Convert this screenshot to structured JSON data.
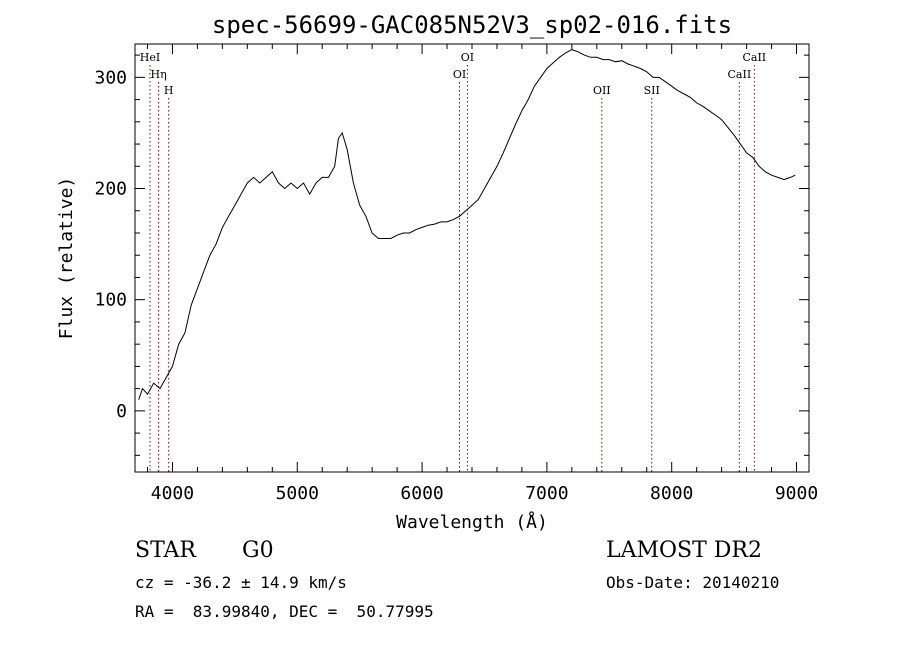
{
  "chart_data": {
    "type": "line",
    "title": "spec-56699-GAC085N52V3_sp02-016.fits",
    "xlabel": "Wavelength (Å)",
    "ylabel": "Flux (relative)",
    "xlim": [
      3700,
      9100
    ],
    "ylim": [
      -55,
      330
    ],
    "xticks": [
      4000,
      5000,
      6000,
      7000,
      8000,
      9000
    ],
    "yticks": [
      0,
      100,
      200,
      300
    ],
    "xtick_labels": [
      "4000",
      "5000",
      "6000",
      "7000",
      "8000",
      "9000"
    ],
    "ytick_labels": [
      "0",
      "100",
      "200",
      "300"
    ],
    "x_minor_step": 200,
    "y_minor_step": 20,
    "grid": false,
    "line_color": "#000000",
    "marker_color": "#8b0000",
    "series": [
      {
        "x": [
          3730,
          3760,
          3800,
          3850,
          3900,
          3950,
          4000,
          4050,
          4100,
          4150,
          4200,
          4250,
          4300,
          4350,
          4400,
          4450,
          4500,
          4550,
          4600,
          4650,
          4700,
          4750,
          4800,
          4850,
          4900,
          4950,
          5000,
          5050,
          5100,
          5150,
          5200,
          5250,
          5300,
          5330,
          5360,
          5400,
          5450,
          5500,
          5550,
          5600,
          5650,
          5700,
          5750,
          5800,
          5850,
          5900,
          5950,
          6000,
          6050,
          6100,
          6150,
          6200,
          6250,
          6300,
          6350,
          6400,
          6450,
          6500,
          6550,
          6600,
          6650,
          6700,
          6750,
          6800,
          6850,
          6900,
          6950,
          7000,
          7050,
          7100,
          7150,
          7200,
          7250,
          7300,
          7350,
          7400,
          7450,
          7500,
          7550,
          7600,
          7650,
          7700,
          7750,
          7800,
          7850,
          7900,
          7950,
          8000,
          8050,
          8100,
          8150,
          8200,
          8250,
          8300,
          8350,
          8400,
          8450,
          8500,
          8550,
          8600,
          8650,
          8700,
          8750,
          8800,
          8850,
          8900,
          8950,
          8990
        ],
        "y": [
          10,
          20,
          15,
          25,
          20,
          30,
          40,
          60,
          70,
          95,
          110,
          125,
          140,
          150,
          165,
          175,
          185,
          195,
          205,
          210,
          205,
          210,
          215,
          205,
          200,
          205,
          200,
          205,
          195,
          205,
          210,
          210,
          220,
          245,
          250,
          235,
          205,
          185,
          175,
          160,
          155,
          155,
          155,
          158,
          160,
          160,
          163,
          165,
          167,
          168,
          170,
          170,
          172,
          175,
          180,
          185,
          190,
          200,
          210,
          220,
          232,
          245,
          258,
          270,
          280,
          292,
          300,
          308,
          313,
          318,
          322,
          325,
          323,
          320,
          318,
          318,
          316,
          316,
          314,
          315,
          312,
          310,
          308,
          305,
          300,
          300,
          296,
          292,
          288,
          285,
          282,
          277,
          274,
          270,
          266,
          262,
          255,
          248,
          240,
          232,
          228,
          220,
          215,
          212,
          210,
          208,
          210,
          212
        ]
      }
    ],
    "line_markers": [
      {
        "label": "HeI",
        "x": 3820,
        "level": "top"
      },
      {
        "label": "Hη",
        "x": 3889,
        "level": "middle"
      },
      {
        "label": "H",
        "x": 3970,
        "level": "low"
      },
      {
        "label": "OI",
        "x": 6300,
        "level": "middle"
      },
      {
        "label": "OI",
        "x": 6363,
        "level": "top"
      },
      {
        "label": "OII",
        "x": 7440,
        "level": "low"
      },
      {
        "label": "SII",
        "x": 7840,
        "level": "low"
      },
      {
        "label": "CaII",
        "x": 8542,
        "level": "middle"
      },
      {
        "label": "CaII",
        "x": 8662,
        "level": "top"
      }
    ]
  },
  "info": {
    "class_label": "STAR",
    "subclass": "G0",
    "survey": "LAMOST DR2",
    "velocity": "cz = -36.2 ± 14.9 km/s",
    "obs_date": "Obs-Date: 20140210",
    "coords": "RA =  83.99840, DEC =  50.77995"
  }
}
